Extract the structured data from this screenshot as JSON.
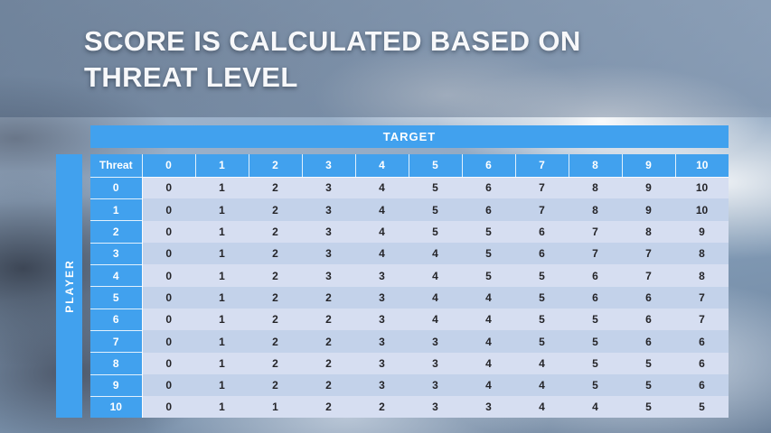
{
  "title": {
    "line1": "SCORE IS CALCULATED BASED ON",
    "line2": "THREAT LEVEL"
  },
  "table": {
    "target_label": "TARGET",
    "player_label": "PLAYER",
    "corner_label": "Threat",
    "column_headers": [
      "0",
      "1",
      "2",
      "3",
      "4",
      "5",
      "6",
      "7",
      "8",
      "9",
      "10"
    ],
    "rows": [
      {
        "threat": "0",
        "values": [
          "0",
          "1",
          "2",
          "3",
          "4",
          "5",
          "6",
          "7",
          "8",
          "9",
          "10"
        ]
      },
      {
        "threat": "1",
        "values": [
          "0",
          "1",
          "2",
          "3",
          "4",
          "5",
          "6",
          "7",
          "8",
          "9",
          "10"
        ]
      },
      {
        "threat": "2",
        "values": [
          "0",
          "1",
          "2",
          "3",
          "4",
          "5",
          "5",
          "6",
          "7",
          "8",
          "9"
        ]
      },
      {
        "threat": "3",
        "values": [
          "0",
          "1",
          "2",
          "3",
          "4",
          "4",
          "5",
          "6",
          "7",
          "7",
          "8"
        ]
      },
      {
        "threat": "4",
        "values": [
          "0",
          "1",
          "2",
          "3",
          "3",
          "4",
          "5",
          "5",
          "6",
          "7",
          "8"
        ]
      },
      {
        "threat": "5",
        "values": [
          "0",
          "1",
          "2",
          "2",
          "3",
          "4",
          "4",
          "5",
          "6",
          "6",
          "7"
        ]
      },
      {
        "threat": "6",
        "values": [
          "0",
          "1",
          "2",
          "2",
          "3",
          "4",
          "4",
          "5",
          "5",
          "6",
          "7"
        ]
      },
      {
        "threat": "7",
        "values": [
          "0",
          "1",
          "2",
          "2",
          "3",
          "3",
          "4",
          "5",
          "5",
          "6",
          "6"
        ]
      },
      {
        "threat": "8",
        "values": [
          "0",
          "1",
          "2",
          "2",
          "3",
          "3",
          "4",
          "4",
          "5",
          "5",
          "6"
        ]
      },
      {
        "threat": "9",
        "values": [
          "0",
          "1",
          "2",
          "2",
          "3",
          "3",
          "4",
          "4",
          "5",
          "5",
          "6"
        ]
      },
      {
        "threat": "10",
        "values": [
          "0",
          "1",
          "1",
          "2",
          "2",
          "3",
          "3",
          "4",
          "4",
          "5",
          "5"
        ]
      }
    ]
  },
  "colors": {
    "accent_blue": "#41a1ee",
    "band_light": "#d6def1",
    "band_dark": "#c3d2ea",
    "title_band": "#5f7492"
  }
}
